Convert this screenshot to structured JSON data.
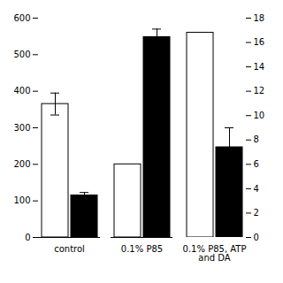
{
  "chart_data": {
    "type": "bar",
    "categories": [
      "control",
      "0.1% P85",
      "0.1% P85, ATP\nand DA"
    ],
    "ylim": [
      0,
      600
    ],
    "yticks": [
      0,
      100,
      200,
      300,
      400,
      500,
      600
    ],
    "y2lim": [
      0,
      18
    ],
    "y2ticks": [
      0,
      2,
      4,
      6,
      8,
      10,
      12,
      14,
      16,
      18
    ],
    "grid": false,
    "series": [
      {
        "color": "white",
        "values": [
          365,
          200,
          null
        ],
        "errors": [
          30,
          0,
          0
        ]
      },
      {
        "color": "white",
        "axis": "y2",
        "values": [
          null,
          null,
          16.8
        ],
        "errors": [
          0,
          0,
          0
        ]
      },
      {
        "color": "black",
        "values": [
          115,
          548,
          null
        ],
        "errors": [
          8,
          22,
          0
        ]
      },
      {
        "color": "black",
        "axis": "y2",
        "values": [
          null,
          null,
          7.4
        ],
        "errors": [
          0,
          0,
          1.6
        ]
      }
    ]
  }
}
